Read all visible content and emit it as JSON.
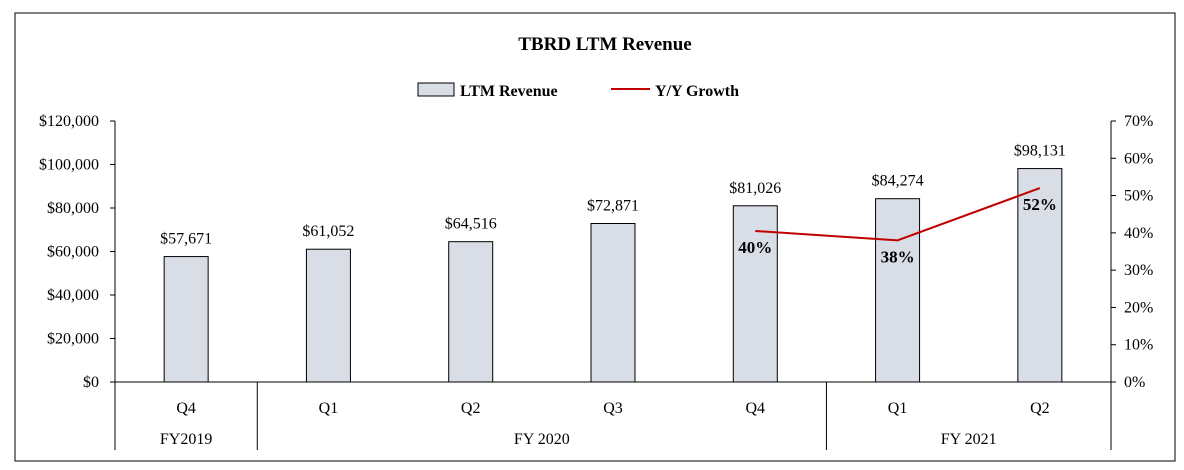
{
  "chart_data": {
    "type": "bar",
    "title": "TBRD LTM Revenue",
    "categories": [
      "Q4",
      "Q1",
      "Q2",
      "Q3",
      "Q4",
      "Q1",
      "Q2"
    ],
    "groups": [
      {
        "label": "FY2019",
        "count": 1
      },
      {
        "label": "FY 2020",
        "count": 4
      },
      {
        "label": "FY 2021",
        "count": 2
      }
    ],
    "series": [
      {
        "name": "LTM Revenue",
        "type": "bar",
        "axis": "left",
        "values": [
          57671,
          61052,
          64516,
          72871,
          81026,
          84274,
          98131
        ],
        "labels": [
          "$57,671",
          "$61,052",
          "$64,516",
          "$72,871",
          "$81,026",
          "$84,274",
          "$98,131"
        ],
        "color": "#d9dde6"
      },
      {
        "name": "Y/Y Growth",
        "type": "line",
        "axis": "right",
        "values": [
          null,
          null,
          null,
          null,
          40.5,
          38,
          52
        ],
        "labels": [
          "",
          "",
          "",
          "",
          "40%",
          "38%",
          "52%"
        ],
        "color": "#c00000"
      }
    ],
    "ylim": [
      0,
      120000
    ],
    "y_ticks": [
      "$0",
      "$20,000",
      "$40,000",
      "$60,000",
      "$80,000",
      "$100,000",
      "$120,000"
    ],
    "y2lim": [
      0,
      70
    ],
    "y2_ticks": [
      "0%",
      "10%",
      "20%",
      "30%",
      "40%",
      "50%",
      "60%",
      "70%"
    ],
    "legend": "top-center",
    "grid": false
  }
}
